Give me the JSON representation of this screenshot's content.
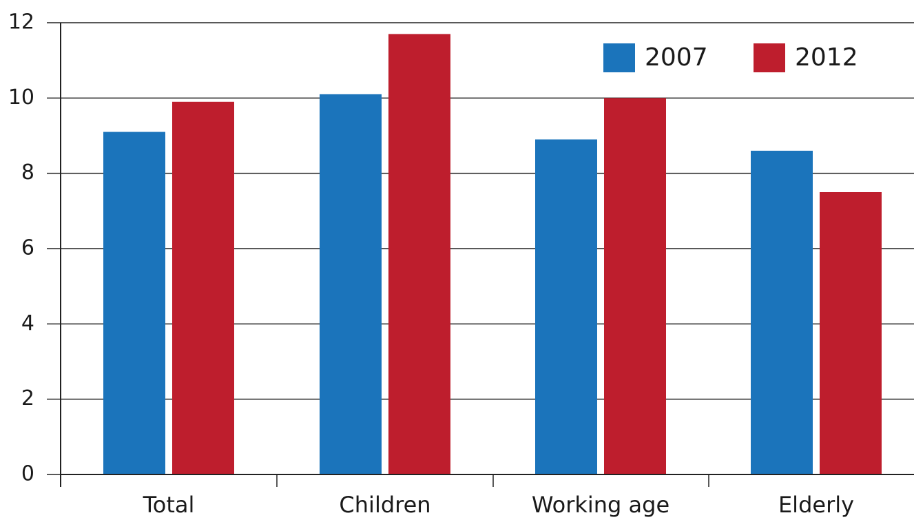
{
  "chart_data": {
    "type": "bar",
    "categories": [
      "Total",
      "Children",
      "Working age",
      "Elderly"
    ],
    "series": [
      {
        "name": "2007",
        "color": "#1b74bb",
        "values": [
          9.1,
          10.1,
          8.9,
          8.6
        ]
      },
      {
        "name": "2012",
        "color": "#be1e2d",
        "values": [
          9.9,
          11.7,
          10.0,
          7.5
        ]
      }
    ],
    "ylim": [
      0,
      12
    ],
    "yticks": [
      0,
      2,
      4,
      6,
      8,
      10,
      12
    ],
    "title": "",
    "xlabel": "",
    "ylabel": "",
    "grid": true,
    "legend_position": "top-right"
  }
}
